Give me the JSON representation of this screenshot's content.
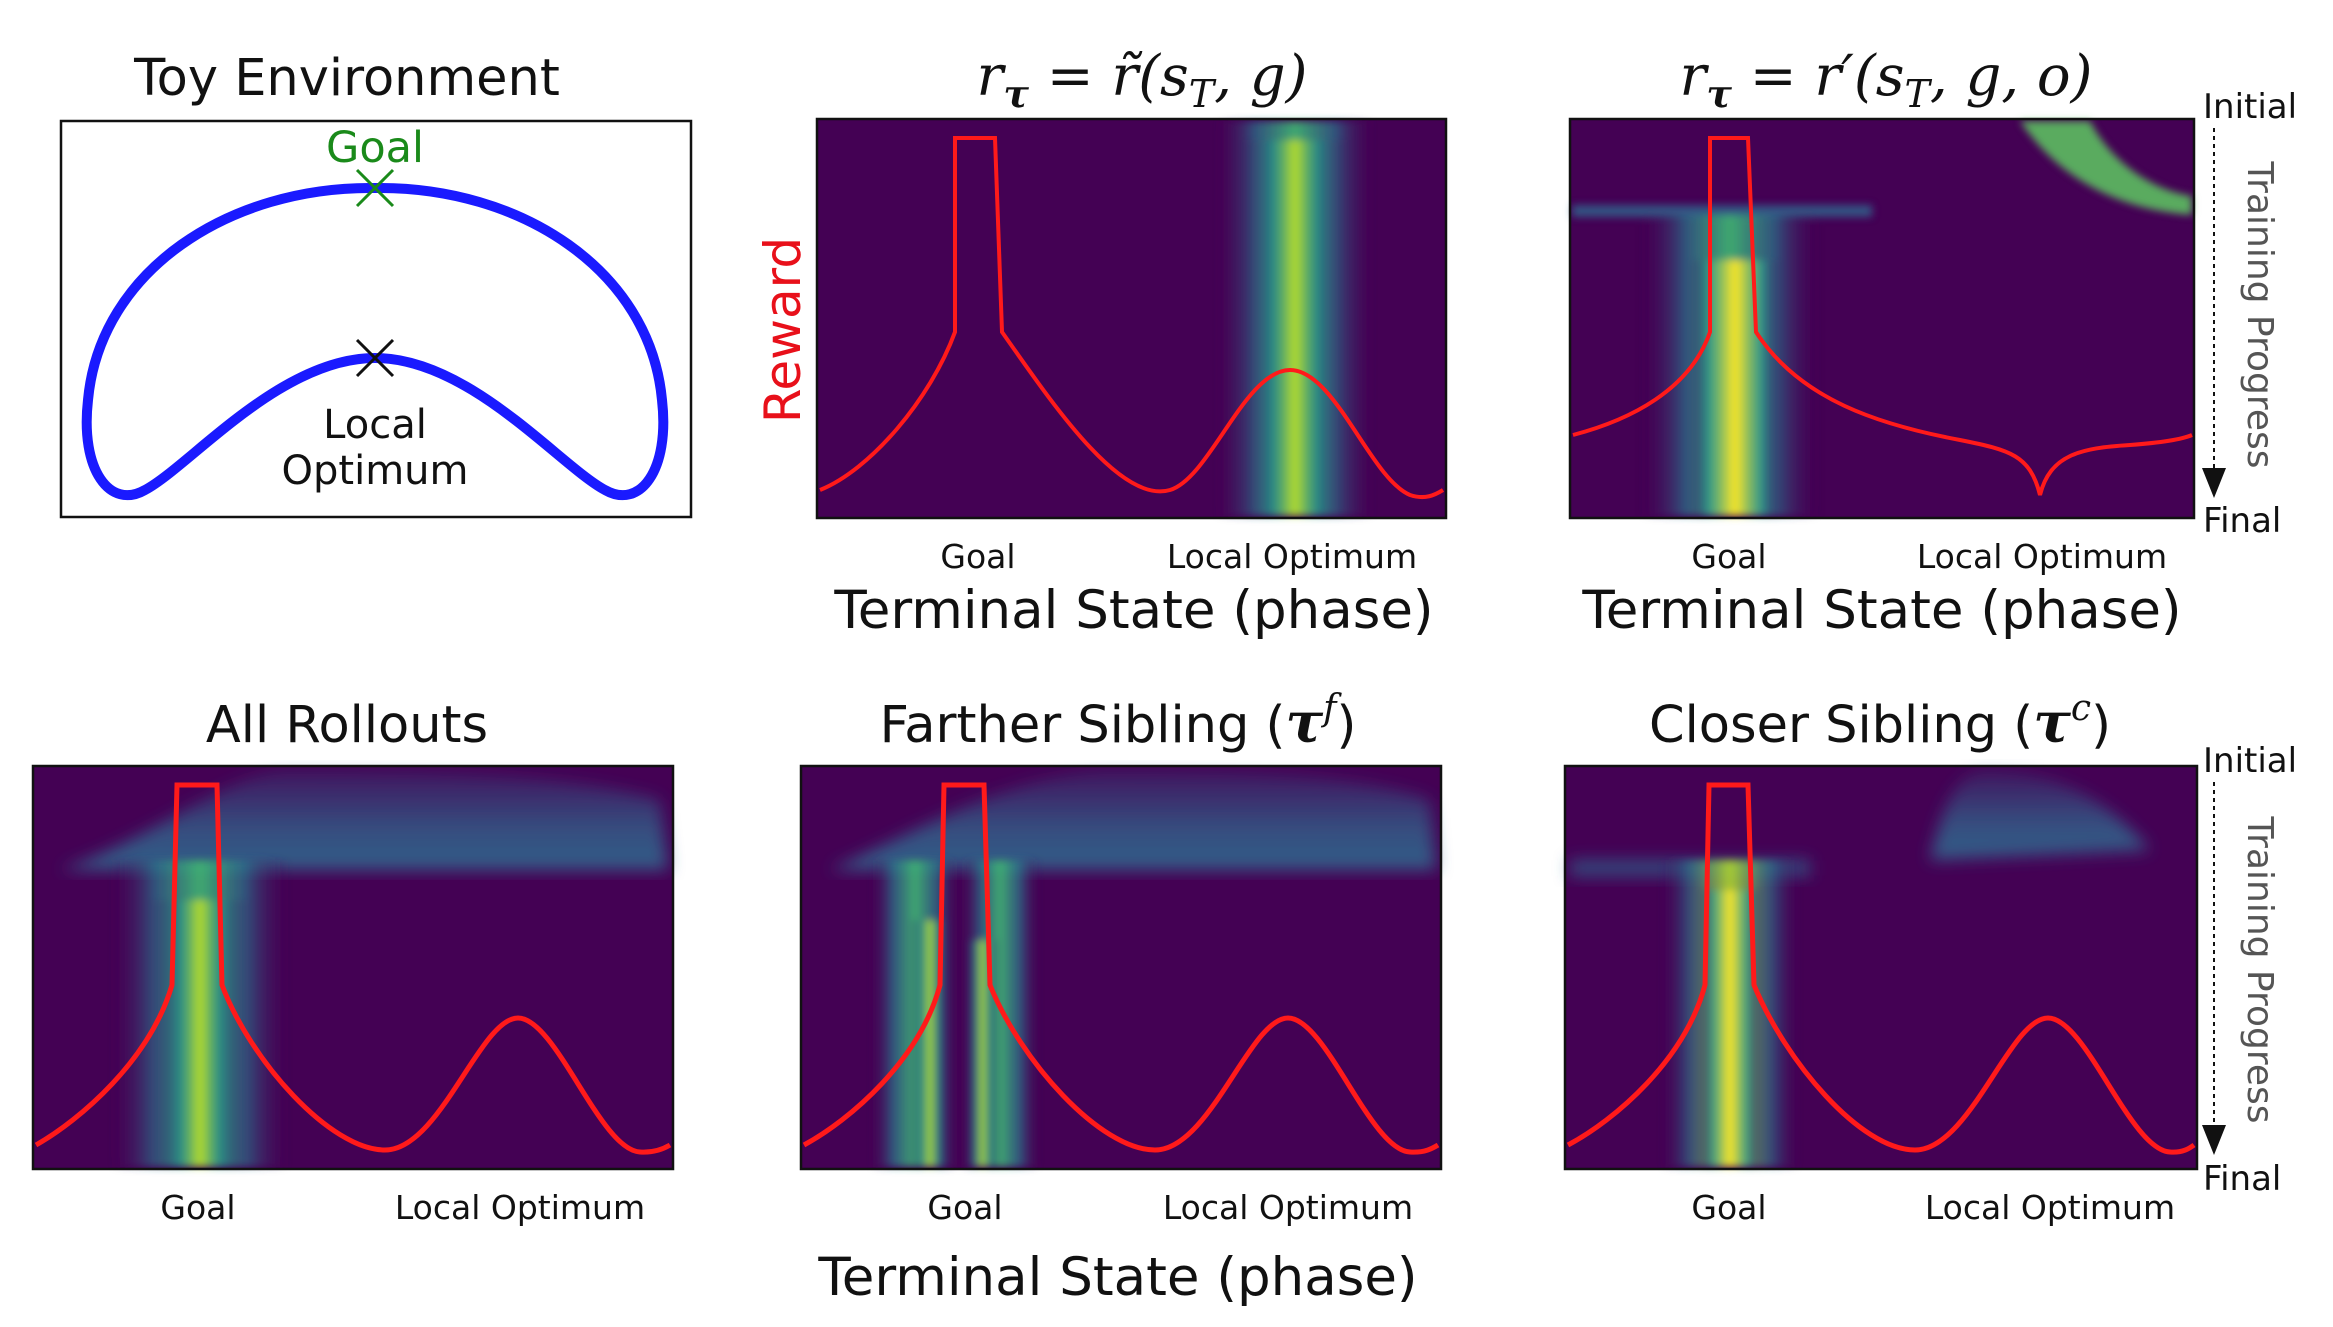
{
  "figure": {
    "toy": {
      "title": "Toy Environment",
      "goal_label": "Goal",
      "local_label_line1": "Local",
      "local_label_line2": "Optimum"
    },
    "side": {
      "initial": "Initial",
      "final": "Final",
      "progress": "Training Progress"
    },
    "reward_label": "Reward",
    "shared_xlabel": "Terminal State (phase)"
  },
  "colors": {
    "reward": "#ff1a1a",
    "background": "#440154",
    "toy_curve": "#1a1aff",
    "goal": "#1a8a1a"
  },
  "chart_data": [
    {
      "type": "heatmap",
      "title_parts": [
        "r",
        "τ",
        " = r̃(s",
        "T",
        ", g)"
      ],
      "xlabel": "Terminal State (phase)",
      "xticks": [
        "Goal",
        "Local Optimum"
      ],
      "ylabel": "Reward",
      "y_axis": "training progress (top = initial, bottom = final)",
      "density_bands": [
        {
          "center": "Local Optimum",
          "from": 0.0,
          "to": 1.0
        }
      ],
      "reward_curve": "goal plateau + local optimum peak"
    },
    {
      "type": "heatmap",
      "title_parts": [
        "r",
        "τ",
        " = r′(s",
        "T",
        ", g, o)"
      ],
      "xlabel": "Terminal State (phase)",
      "xticks": [
        "Goal",
        "Local Optimum"
      ],
      "y_top": "Initial",
      "y_bottom": "Final",
      "density_bands": [
        {
          "center": "Local Optimum",
          "from": 0.0,
          "to": 0.2
        },
        {
          "center": "Goal",
          "from": 0.2,
          "to": 1.0
        }
      ],
      "reward_curve": "goal plateau + dip at local optimum"
    },
    {
      "type": "heatmap",
      "title_parts": [
        "All Rollouts"
      ],
      "xticks": [
        "Goal",
        "Local Optimum"
      ],
      "density_bands": [
        {
          "center": "Local Optimum",
          "from": 0.0,
          "to": 0.25
        },
        {
          "center": "Goal",
          "from": 0.25,
          "to": 1.0
        }
      ],
      "reward_curve": "goal plateau + local optimum peak"
    },
    {
      "type": "heatmap",
      "title_parts": [
        "Farther Sibling (",
        "τ",
        "f",
        ")"
      ],
      "xticks": [
        "Goal",
        "Local Optimum"
      ],
      "density_bands": [
        {
          "center": "Local Optimum",
          "from": 0.0,
          "to": 0.25
        },
        {
          "center": "Goal",
          "from": 0.25,
          "to": 1.0,
          "split": true
        }
      ],
      "reward_curve": "goal plateau + local optimum peak"
    },
    {
      "type": "heatmap",
      "title_parts": [
        "Closer Sibling (",
        "τ",
        "c",
        ")"
      ],
      "xticks": [
        "Goal",
        "Local Optimum"
      ],
      "y_top": "Initial",
      "y_bottom": "Final",
      "density_bands": [
        {
          "center": "Local Optimum",
          "from": 0.0,
          "to": 0.25
        },
        {
          "center": "Goal",
          "from": 0.25,
          "to": 1.0
        }
      ],
      "reward_curve": "goal plateau + local optimum peak"
    }
  ]
}
